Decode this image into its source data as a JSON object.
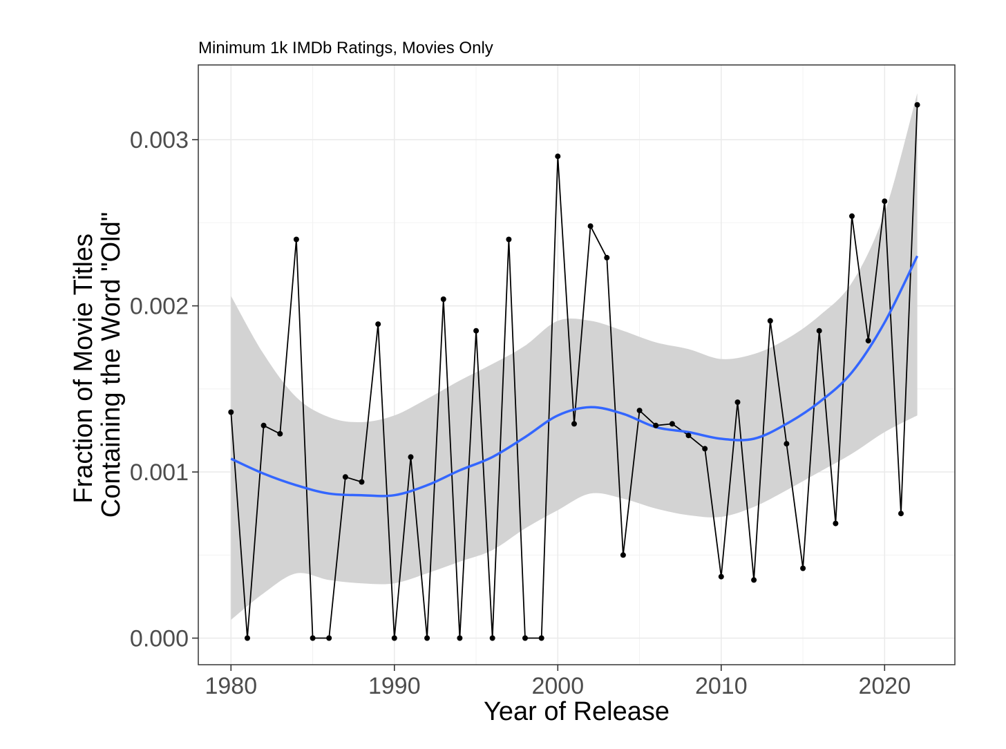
{
  "chart_data": {
    "type": "line",
    "subtitle": "Minimum 1k IMDb Ratings, Movies Only",
    "xlabel": "Year of Release",
    "ylabel_lines": [
      "Fraction of Movie Titles",
      "Containing the Word \"Old\""
    ],
    "xlim": [
      1978,
      2024.3
    ],
    "ylim": [
      -0.00016,
      0.00345
    ],
    "x_ticks": [
      1980,
      1990,
      2000,
      2010,
      2020
    ],
    "x_tick_labels": [
      "1980",
      "1990",
      "2000",
      "2010",
      "2020"
    ],
    "y_ticks": [
      0,
      0.001,
      0.002,
      0.003
    ],
    "y_tick_labels": [
      "0.000",
      "0.001",
      "0.002",
      "0.003"
    ],
    "grid": true,
    "series": [
      {
        "kind": "observed",
        "color": "#000000",
        "x": [
          1980,
          1981,
          1982,
          1983,
          1984,
          1985,
          1986,
          1987,
          1988,
          1989,
          1990,
          1991,
          1992,
          1993,
          1994,
          1995,
          1996,
          1997,
          1998,
          1999,
          2000,
          2001,
          2002,
          2003,
          2004,
          2005,
          2006,
          2007,
          2008,
          2009,
          2010,
          2011,
          2012,
          2013,
          2014,
          2015,
          2016,
          2017,
          2018,
          2019,
          2020,
          2021,
          2022
        ],
        "y": [
          0.00136,
          0,
          0.00128,
          0.00123,
          0.0024,
          0,
          0,
          0.00097,
          0.00094,
          0.00189,
          0,
          0.00109,
          0,
          0.00204,
          0,
          0.00185,
          0,
          0.0024,
          0,
          0,
          0.0029,
          0.00129,
          0.00248,
          0.00229,
          0.0005,
          0.00137,
          0.00128,
          0.00129,
          0.00122,
          0.00114,
          0.00037,
          0.00142,
          0.00035,
          0.00191,
          0.00117,
          0.00042,
          0.00185,
          0.00069,
          0.00254,
          0.00179,
          0.00263,
          0.00075,
          0.00321
        ]
      },
      {
        "kind": "smooth",
        "color": "#3366ff",
        "x": [
          1980,
          1982,
          1984,
          1986,
          1988,
          1990,
          1992,
          1994,
          1996,
          1998,
          2000,
          2002,
          2004,
          2006,
          2008,
          2010,
          2012,
          2014,
          2016,
          2018,
          2020,
          2022
        ],
        "y": [
          0.00108,
          0.00099,
          0.00092,
          0.00087,
          0.00086,
          0.00086,
          0.00092,
          0.00101,
          0.00109,
          0.00121,
          0.00134,
          0.00139,
          0.00135,
          0.00127,
          0.00124,
          0.0012,
          0.0012,
          0.00129,
          0.00142,
          0.0016,
          0.0019,
          0.0023
        ],
        "ci_low": [
          0.00011,
          0.00027,
          0.00039,
          0.00035,
          0.00033,
          0.00033,
          0.00039,
          0.00046,
          0.00053,
          0.00066,
          0.00077,
          0.00087,
          0.00084,
          0.00078,
          0.00074,
          0.00073,
          0.00079,
          0.00089,
          0.001,
          0.00111,
          0.00124,
          0.00134
        ],
        "ci_high": [
          0.00206,
          0.00171,
          0.00145,
          0.00133,
          0.0013,
          0.00134,
          0.00144,
          0.00155,
          0.00165,
          0.00176,
          0.00191,
          0.00191,
          0.00185,
          0.00178,
          0.00174,
          0.00168,
          0.00171,
          0.0018,
          0.00194,
          0.00214,
          0.00256,
          0.00328
        ],
        "ci_color": "#d3d3d3"
      }
    ]
  }
}
